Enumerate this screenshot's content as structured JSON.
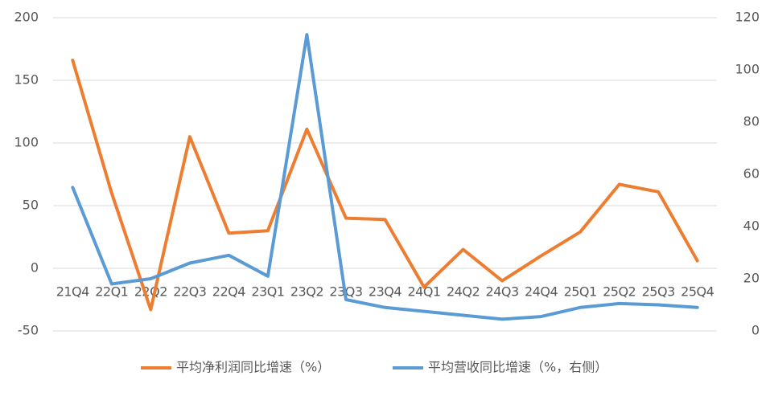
{
  "chart_data": {
    "type": "line",
    "categories": [
      "21Q4",
      "22Q1",
      "22Q2",
      "22Q3",
      "22Q4",
      "23Q1",
      "23Q2",
      "23Q3",
      "23Q4",
      "24Q1",
      "24Q2",
      "24Q3",
      "24Q4",
      "25Q1",
      "25Q2",
      "25Q3",
      "25Q4"
    ],
    "series": [
      {
        "name": "平均净利润同比增速（%）",
        "color": "#ed7d31",
        "values": [
          166,
          60,
          -33,
          105,
          28,
          30,
          111,
          40,
          39,
          -15,
          15,
          -10,
          10,
          29,
          67,
          61,
          6
        ]
      },
      {
        "name": "平均营收同比增速（%，右侧）",
        "color": "#5b9bd5",
        "axis": "y2",
        "values": [
          55,
          18,
          20,
          26,
          29,
          21,
          113.5,
          12,
          9,
          7.5,
          6,
          4.5,
          5.5,
          9,
          10.5,
          10,
          9
        ]
      }
    ],
    "ylim": [
      -50,
      200
    ],
    "yticks": [
      -50,
      0,
      50,
      100,
      150,
      200
    ],
    "y2lim": [
      0,
      120
    ],
    "y2ticks": [
      0,
      20,
      40,
      60,
      80,
      100,
      120
    ],
    "grid": true,
    "legend": "bottom"
  }
}
